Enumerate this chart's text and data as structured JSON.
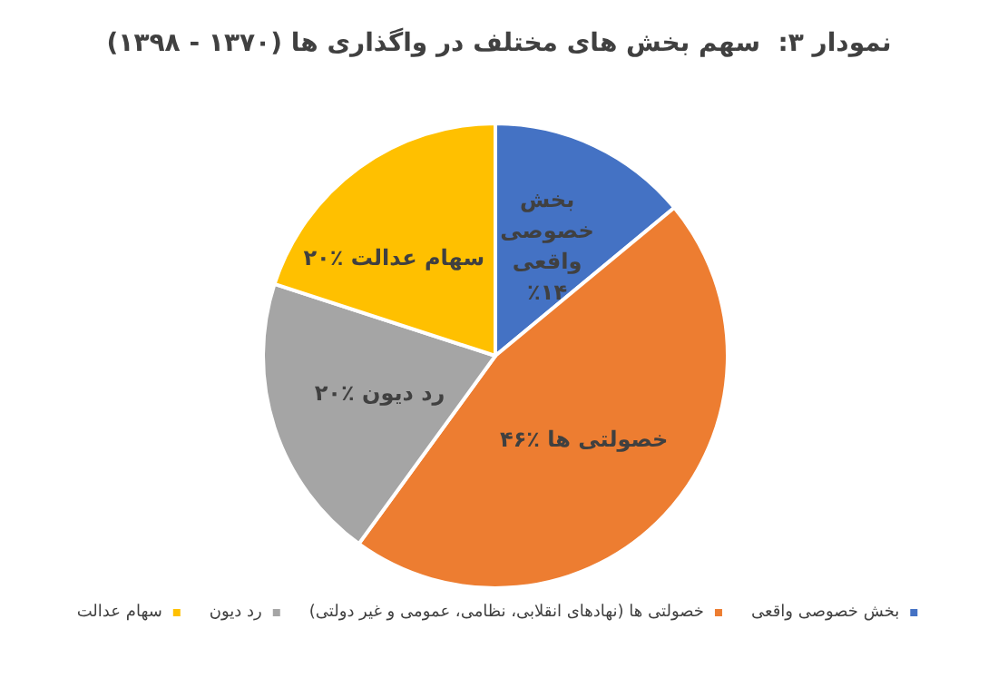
{
  "chart_data": {
    "type": "pie",
    "title": "نمودار ۳:  سهم بخش های مختلف در واگذاری ها (۱۳۷۰ - ۱۳۹۸)",
    "categories": [
      "بخش خصوصی واقعی",
      "خصولتی ها (نهادهای انقلابی، نظامی، عمومی و غیر دولتی)",
      "رد دیون",
      "سهام عدالت"
    ],
    "values": [
      14,
      46,
      20,
      20
    ],
    "colors": [
      "#4472c4",
      "#ed7d31",
      "#a5a5a5",
      "#ffc000"
    ],
    "value_labels": [
      "بخش\nخصوصی\nواقعی\n٪۱۴",
      "خصولتی ها ٪۴۶",
      "رد دیون ٪۲۰",
      "سهام عدالت ٪۲۰"
    ],
    "legend": "bottom"
  }
}
